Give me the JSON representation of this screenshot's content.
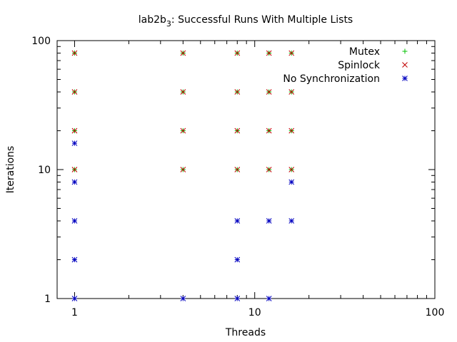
{
  "chart_data": {
    "type": "scatter",
    "title": "lab2b",
    "title_subscript": "3",
    "title_rest": ": Successful Runs With Multiple Lists",
    "xlabel": "Threads",
    "ylabel": "Iterations",
    "x_scale": "log",
    "y_scale": "log",
    "xlim": [
      0.8,
      100
    ],
    "ylim": [
      1,
      100
    ],
    "x_ticks": [
      1,
      10,
      100
    ],
    "y_ticks": [
      1,
      10,
      100
    ],
    "x_tick_labels": [
      "1",
      "10",
      "100"
    ],
    "y_tick_labels": [
      "1",
      "10",
      "100"
    ],
    "grid": false,
    "legend_position": "top-right",
    "series": [
      {
        "name": "Mutex",
        "marker": "plus",
        "color": "#00c000",
        "points": [
          [
            1,
            10
          ],
          [
            1,
            20
          ],
          [
            1,
            40
          ],
          [
            1,
            80
          ],
          [
            4,
            10
          ],
          [
            4,
            20
          ],
          [
            4,
            40
          ],
          [
            4,
            80
          ],
          [
            8,
            10
          ],
          [
            8,
            20
          ],
          [
            8,
            40
          ],
          [
            8,
            80
          ],
          [
            12,
            10
          ],
          [
            12,
            20
          ],
          [
            12,
            40
          ],
          [
            12,
            80
          ],
          [
            16,
            10
          ],
          [
            16,
            20
          ],
          [
            16,
            40
          ],
          [
            16,
            80
          ]
        ]
      },
      {
        "name": "Spinlock",
        "marker": "cross",
        "color": "#c00000",
        "points": [
          [
            1,
            10
          ],
          [
            1,
            20
          ],
          [
            1,
            40
          ],
          [
            1,
            80
          ],
          [
            4,
            10
          ],
          [
            4,
            20
          ],
          [
            4,
            40
          ],
          [
            4,
            80
          ],
          [
            8,
            10
          ],
          [
            8,
            20
          ],
          [
            8,
            40
          ],
          [
            8,
            80
          ],
          [
            12,
            10
          ],
          [
            12,
            20
          ],
          [
            12,
            40
          ],
          [
            12,
            80
          ],
          [
            16,
            10
          ],
          [
            16,
            20
          ],
          [
            16,
            40
          ],
          [
            16,
            80
          ]
        ]
      },
      {
        "name": "No Synchronization",
        "marker": "star",
        "color": "#0000c0",
        "points": [
          [
            1,
            1
          ],
          [
            1,
            2
          ],
          [
            1,
            4
          ],
          [
            1,
            8
          ],
          [
            1,
            16
          ],
          [
            4,
            1
          ],
          [
            8,
            1
          ],
          [
            8,
            2
          ],
          [
            8,
            4
          ],
          [
            12,
            1
          ],
          [
            12,
            4
          ],
          [
            16,
            4
          ],
          [
            16,
            8
          ]
        ]
      }
    ]
  }
}
